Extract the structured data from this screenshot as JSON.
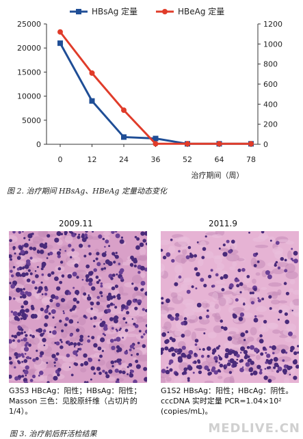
{
  "chart_data": {
    "type": "line",
    "categories": [
      "0",
      "12",
      "24",
      "36",
      "52",
      "64",
      "78"
    ],
    "series": [
      {
        "name": "HBsAg 定量",
        "axis": "left",
        "color": "#1f4e96",
        "marker": "square",
        "values": [
          21000,
          9000,
          1500,
          1200,
          100,
          100,
          100
        ]
      },
      {
        "name": "HBeAg 定量",
        "axis": "right",
        "color": "#e03c2a",
        "marker": "circle",
        "values": [
          1120,
          710,
          340,
          5,
          5,
          5,
          5
        ]
      }
    ],
    "xlabel": "治疗期间（周）",
    "y_left": {
      "ylim": [
        0,
        25000
      ],
      "ticks": [
        "0",
        "5000",
        "10000",
        "15000",
        "20000",
        "25000"
      ]
    },
    "y_right": {
      "ylim": [
        0,
        1200
      ],
      "ticks": [
        "0",
        "200",
        "400",
        "600",
        "800",
        "1000",
        "1200"
      ]
    },
    "legend_position": "top-center",
    "grid": false
  },
  "figure2_caption": "图 2. 治疗期间 HBsAg、HBeAg 定量动态变化",
  "photos": [
    {
      "date": "2009.11",
      "caption": "G3S3 HBcAg：阳性；HBsAg：阳性；Masson 三色：见胶原纤维（占切片的 1/4）。"
    },
    {
      "date": "2011.9",
      "caption": "G1S2 HBsAg：阳性；HBcAg：阴性。cccDNA 实时定量 PCR=1.04×10² (copies/mL)。"
    }
  ],
  "figure3_caption": "图 3. 治疗前后肝活检结果",
  "watermark": "MEDLIVE.CN",
  "colors": {
    "hbsag": "#1f4e96",
    "hbeag": "#e03c2a",
    "tissue_base": "#d9a0c8",
    "nucleus": "#4a2a7a"
  }
}
